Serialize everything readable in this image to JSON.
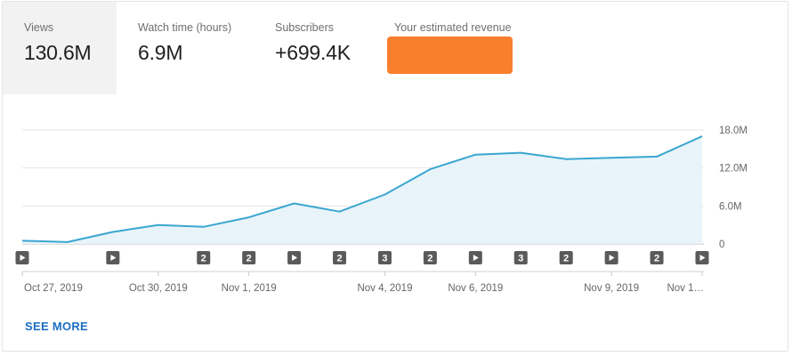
{
  "metrics": [
    {
      "label": "Views",
      "value": "130.6M",
      "selected": true
    },
    {
      "label": "Watch time (hours)",
      "value": "6.9M",
      "selected": false
    },
    {
      "label": "Subscribers",
      "value": "+699.4K",
      "selected": false
    },
    {
      "label": "Your estimated revenue",
      "value": "",
      "redacted": true,
      "redaction_color": "#f97f2f"
    }
  ],
  "see_more_label": "SEE MORE",
  "colors": {
    "line": "#3aa6d0",
    "fill": "#e8f4fa",
    "marker": "#5a5a5a",
    "grid": "#e6e6e6"
  },
  "chart_data": {
    "type": "area",
    "title": "",
    "xlabel": "",
    "ylabel": "",
    "x": [
      "Oct 27, 2019",
      "Oct 28, 2019",
      "Oct 29, 2019",
      "Oct 30, 2019",
      "Oct 31, 2019",
      "Nov 1, 2019",
      "Nov 2, 2019",
      "Nov 3, 2019",
      "Nov 4, 2019",
      "Nov 5, 2019",
      "Nov 6, 2019",
      "Nov 7, 2019",
      "Nov 8, 2019",
      "Nov 9, 2019",
      "Nov 10, 2019",
      "Nov 11, 2019"
    ],
    "series": [
      {
        "values": [
          0.5,
          0.3,
          1.9,
          3.0,
          2.7,
          4.2,
          6.4,
          5.1,
          7.8,
          11.8,
          14.1,
          14.4,
          13.4,
          13.6,
          13.8,
          17.0
        ]
      }
    ],
    "ylim": [
      0,
      18
    ],
    "y_ticks": [
      "18.0M",
      "12.0M",
      "6.0M",
      "0"
    ],
    "y_tick_values": [
      18,
      12,
      6,
      0
    ],
    "x_tick_labels": [
      {
        "index": 0,
        "label": "Oct 27, 2019"
      },
      {
        "index": 3,
        "label": "Oct 30, 2019"
      },
      {
        "index": 5,
        "label": "Nov 1, 2019"
      },
      {
        "index": 8,
        "label": "Nov 4, 2019"
      },
      {
        "index": 10,
        "label": "Nov 6, 2019"
      },
      {
        "index": 13,
        "label": "Nov 9, 2019"
      },
      {
        "index": 15,
        "label": "Nov 1…"
      }
    ],
    "markers": [
      {
        "index": 0,
        "kind": "video"
      },
      {
        "index": 2,
        "kind": "video"
      },
      {
        "index": 4,
        "kind": "count",
        "label": "2"
      },
      {
        "index": 5,
        "kind": "count",
        "label": "2"
      },
      {
        "index": 6,
        "kind": "video"
      },
      {
        "index": 7,
        "kind": "count",
        "label": "2"
      },
      {
        "index": 8,
        "kind": "count",
        "label": "3"
      },
      {
        "index": 9,
        "kind": "count",
        "label": "2"
      },
      {
        "index": 10,
        "kind": "video"
      },
      {
        "index": 11,
        "kind": "count",
        "label": "3"
      },
      {
        "index": 12,
        "kind": "count",
        "label": "2"
      },
      {
        "index": 13,
        "kind": "video"
      },
      {
        "index": 14,
        "kind": "count",
        "label": "2"
      },
      {
        "index": 15,
        "kind": "video"
      }
    ],
    "grid": true
  }
}
